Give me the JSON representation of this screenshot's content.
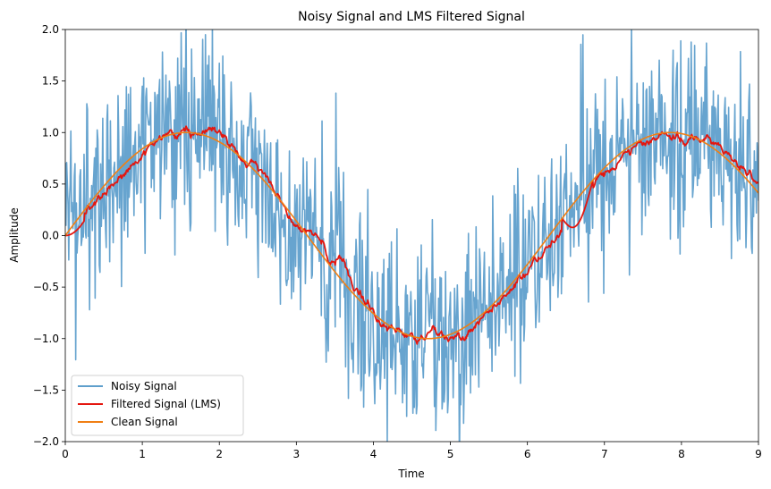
{
  "chart_data": {
    "type": "line",
    "title": "Noisy Signal and LMS Filtered Signal",
    "xlabel": "Time",
    "ylabel": "Amplitude",
    "xlim": [
      0,
      9
    ],
    "ylim": [
      -2,
      2
    ],
    "x_ticks": [
      "0",
      "1",
      "2",
      "3",
      "4",
      "5",
      "6",
      "7",
      "8",
      "9"
    ],
    "y_ticks": [
      "−2.0",
      "−1.5",
      "−1.0",
      "−0.5",
      "0.0",
      "0.5",
      "1.0",
      "1.5",
      "2.0"
    ],
    "grid": false,
    "legend_position": "lower-left",
    "series": [
      {
        "name": "Noisy Signal",
        "color": "#5f9fcc",
        "description": "sin(t) plus Gaussian noise (sd ~0.5), sampled at 1000 points over 0-9",
        "x_range": [
          0,
          9
        ],
        "points": 1000,
        "noise_sd": 0.5
      },
      {
        "name": "Filtered Signal (LMS)",
        "color": "#e4160f",
        "x_range": [
          0,
          9
        ],
        "approximate_shape": "tracks sin(t) with small ripples; starts at 0.0, peaks ~1.0 near t=1.5, min ~-1.0 near t=4.7, lags near t=6.5-6.8 then jumps to ~0.75 at t=6.9"
      },
      {
        "name": "Clean Signal",
        "color": "#f07f14",
        "function": "sin(t)",
        "x_range": [
          0,
          9
        ]
      }
    ]
  }
}
